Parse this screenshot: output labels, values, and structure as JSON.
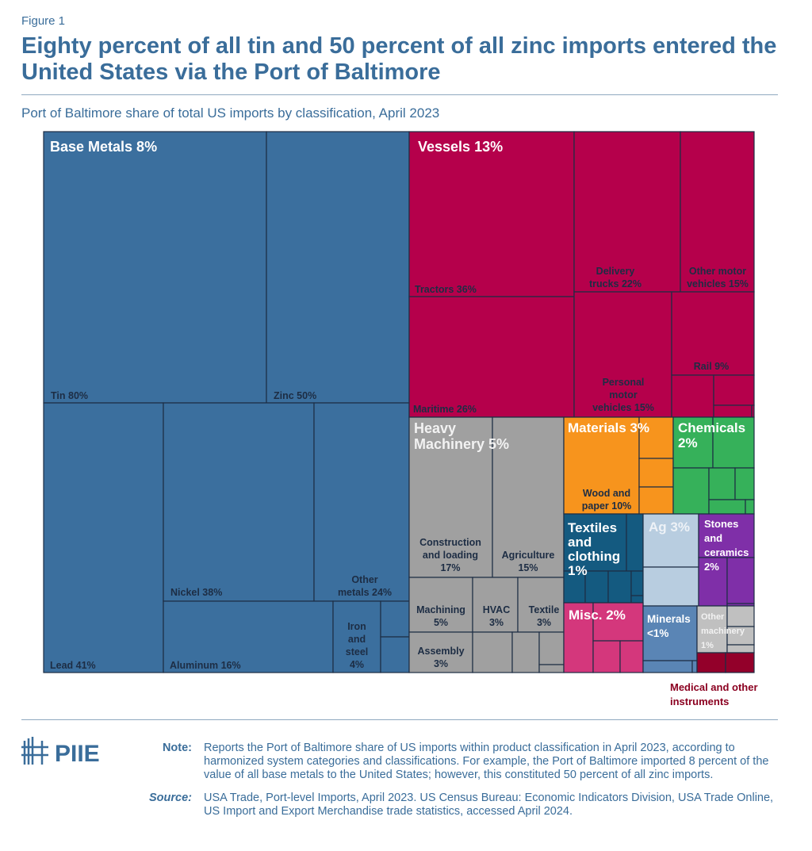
{
  "figure_label": "Figure 1",
  "title": "Eighty percent of all tin and 50 percent of all zinc imports entered the United States via the Port of Baltimore",
  "subtitle": "Port of Baltimore share of total US imports by classification, April 2023",
  "logo_text": "PIIE",
  "note_label": "Note:",
  "note_text": "Reports the Port of Baltimore share of US imports within product classification in April 2023, according to harmonized system categories and classifications. For example, the Port of Baltimore imported 8 percent of the value of all base metals to the United States; however, this constituted 50 percent of all zinc imports.",
  "source_label": "Source:",
  "source_text": "USA Trade, Port-level Imports, April 2023. US Census Bureau: Economic Indicators Division, USA Trade Online, US Import and Export Merchandise trade statistics, accessed April 2024.",
  "chart_data": {
    "type": "treemap",
    "unit": "% share of US imports via Port of Baltimore",
    "groups": [
      {
        "name": "Base Metals",
        "value_label": "8%",
        "value": 8,
        "color": "#3b6f9e",
        "children": [
          {
            "name": "Tin",
            "value_label": "80%",
            "value": 80
          },
          {
            "name": "Zinc",
            "value_label": "50%",
            "value": 50
          },
          {
            "name": "Lead",
            "value_label": "41%",
            "value": 41
          },
          {
            "name": "Nickel",
            "value_label": "38%",
            "value": 38
          },
          {
            "name": "Other metals",
            "value_label": "24%",
            "value": 24
          },
          {
            "name": "Aluminum",
            "value_label": "16%",
            "value": 16
          },
          {
            "name": "Iron and steel",
            "value_label": "4%",
            "value": 4
          }
        ]
      },
      {
        "name": "Vessels",
        "value_label": "13%",
        "value": 13,
        "color": "#b5004b",
        "children": [
          {
            "name": "Tractors",
            "value_label": "36%",
            "value": 36
          },
          {
            "name": "Maritime",
            "value_label": "26%",
            "value": 26
          },
          {
            "name": "Delivery trucks",
            "value_label": "22%",
            "value": 22
          },
          {
            "name": "Other motor vehicles",
            "value_label": "15%",
            "value": 15
          },
          {
            "name": "Personal motor vehicles",
            "value_label": "15%",
            "value": 15
          },
          {
            "name": "Rail",
            "value_label": "9%",
            "value": 9
          }
        ]
      },
      {
        "name": "Heavy Machinery",
        "value_label": "5%",
        "value": 5,
        "color": "#a0a0a0",
        "children": [
          {
            "name": "Construction and loading",
            "value_label": "17%",
            "value": 17
          },
          {
            "name": "Agriculture",
            "value_label": "15%",
            "value": 15
          },
          {
            "name": "Machining",
            "value_label": "5%",
            "value": 5
          },
          {
            "name": "HVAC",
            "value_label": "3%",
            "value": 3
          },
          {
            "name": "Textile",
            "value_label": "3%",
            "value": 3
          },
          {
            "name": "Assembly",
            "value_label": "3%",
            "value": 3
          }
        ]
      },
      {
        "name": "Materials",
        "value_label": "3%",
        "value": 3,
        "color": "#f7941d",
        "children": [
          {
            "name": "Wood and paper",
            "value_label": "10%",
            "value": 10
          }
        ]
      },
      {
        "name": "Chemicals",
        "value_label": "2%",
        "value": 2,
        "color": "#36b15a",
        "children": []
      },
      {
        "name": "Textiles and clothing",
        "value_label": "1%",
        "value": 1,
        "color": "#145a80",
        "children": []
      },
      {
        "name": "Ag",
        "value_label": "3%",
        "value": 3,
        "color": "#b8cde0",
        "children": []
      },
      {
        "name": "Stones and ceramics",
        "value_label": "2%",
        "value": 2,
        "color": "#7f2fa8",
        "children": []
      },
      {
        "name": "Misc.",
        "value_label": "2%",
        "value": 2,
        "color": "#d4377c",
        "children": []
      },
      {
        "name": "Minerals",
        "value_label": "<1%",
        "value": "<1",
        "color": "#5a85b5",
        "children": []
      },
      {
        "name": "Other machinery",
        "value_label": "1%",
        "value": 1,
        "color": "#c0c0c0",
        "children": []
      },
      {
        "name": "Medical and other instruments",
        "value_label": "",
        "color": "#93002a",
        "children": []
      }
    ]
  }
}
